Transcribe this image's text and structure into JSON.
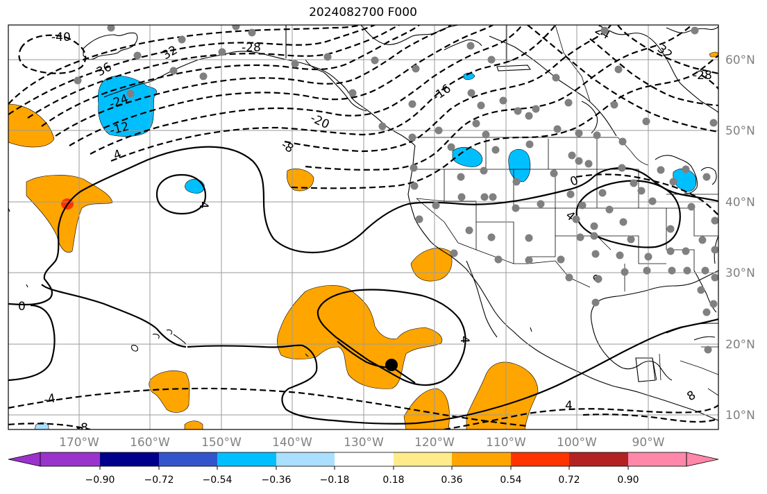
{
  "title": "2024082700 F000",
  "lat_labels": [
    "60°N",
    "50°N",
    "40°N",
    "30°N",
    "20°N",
    "10°N"
  ],
  "lon_labels": [
    "170°W",
    "160°W",
    "150°W",
    "140°W",
    "130°W",
    "120°W",
    "110°W",
    "100°W",
    "90°W"
  ],
  "colorbar": {
    "colors": [
      "#9933cc",
      "#00008b",
      "#3355cc",
      "#00bfff",
      "#aadfff",
      "#ffffff",
      "#ffeb8a",
      "#ffa500",
      "#ff3300",
      "#b22222",
      "#ff88aa",
      "#ff88aa"
    ],
    "tick_labels": [
      "−0.90",
      "−0.72",
      "−0.54",
      "−0.36",
      "−0.18",
      "0.18",
      "0.36",
      "0.54",
      "0.72",
      "0.90"
    ]
  },
  "contour_labels": {
    "neg40": "-40",
    "neg36": "36",
    "neg32a": "32",
    "neg28a": "-28",
    "neg24a": "-24",
    "neg12": "-12",
    "neg20": "-20",
    "neg16": "-16",
    "neg8": "-8",
    "neg4a": "-4",
    "neg4b": "4",
    "neg4c": "-4",
    "neg4d": "4",
    "neg24b": "24",
    "neg32b": "32",
    "neg28b": "-28",
    "zero1": "0",
    "zero2": "0",
    "zero3": "0",
    "pos4a": "4",
    "pos4b": "4",
    "pos4c": "4",
    "neg8b": "-8",
    "pos8": "8"
  },
  "marker": {
    "symbol": "black-dot",
    "lon": -126,
    "lat": 17
  }
}
